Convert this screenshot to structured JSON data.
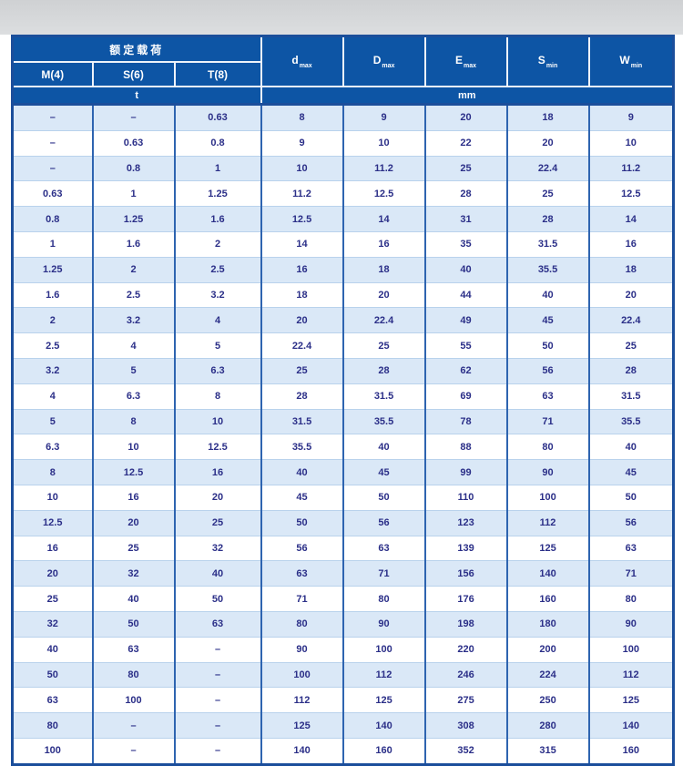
{
  "colors": {
    "header_bg": "#0d55a5",
    "header_text": "#ffffff",
    "row_alt_bg": "#dae8f7",
    "row_bg": "#ffffff",
    "data_text": "#2b2f88",
    "grid_vertical": "#2e64b0",
    "grid_horizontal": "#b9d2ec",
    "outer_border": "#1b4e9b",
    "top_strip": "#d4d6d8"
  },
  "table": {
    "group_header": "额定载荷",
    "sub_headers": [
      "M(4)",
      "S(6)",
      "T(8)"
    ],
    "dim_headers": [
      {
        "base": "d",
        "sub": "max"
      },
      {
        "base": "D",
        "sub": "max"
      },
      {
        "base": "E",
        "sub": "max"
      },
      {
        "base": "S",
        "sub": "min"
      },
      {
        "base": "W",
        "sub": "min"
      }
    ],
    "unit_left": "t",
    "unit_right": "mm",
    "rows": [
      [
        "–",
        "–",
        "0.63",
        "8",
        "9",
        "20",
        "18",
        "9"
      ],
      [
        "–",
        "0.63",
        "0.8",
        "9",
        "10",
        "22",
        "20",
        "10"
      ],
      [
        "–",
        "0.8",
        "1",
        "10",
        "11.2",
        "25",
        "22.4",
        "11.2"
      ],
      [
        "0.63",
        "1",
        "1.25",
        "11.2",
        "12.5",
        "28",
        "25",
        "12.5"
      ],
      [
        "0.8",
        "1.25",
        "1.6",
        "12.5",
        "14",
        "31",
        "28",
        "14"
      ],
      [
        "1",
        "1.6",
        "2",
        "14",
        "16",
        "35",
        "31.5",
        "16"
      ],
      [
        "1.25",
        "2",
        "2.5",
        "16",
        "18",
        "40",
        "35.5",
        "18"
      ],
      [
        "1.6",
        "2.5",
        "3.2",
        "18",
        "20",
        "44",
        "40",
        "20"
      ],
      [
        "2",
        "3.2",
        "4",
        "20",
        "22.4",
        "49",
        "45",
        "22.4"
      ],
      [
        "2.5",
        "4",
        "5",
        "22.4",
        "25",
        "55",
        "50",
        "25"
      ],
      [
        "3.2",
        "5",
        "6.3",
        "25",
        "28",
        "62",
        "56",
        "28"
      ],
      [
        "4",
        "6.3",
        "8",
        "28",
        "31.5",
        "69",
        "63",
        "31.5"
      ],
      [
        "5",
        "8",
        "10",
        "31.5",
        "35.5",
        "78",
        "71",
        "35.5"
      ],
      [
        "6.3",
        "10",
        "12.5",
        "35.5",
        "40",
        "88",
        "80",
        "40"
      ],
      [
        "8",
        "12.5",
        "16",
        "40",
        "45",
        "99",
        "90",
        "45"
      ],
      [
        "10",
        "16",
        "20",
        "45",
        "50",
        "110",
        "100",
        "50"
      ],
      [
        "12.5",
        "20",
        "25",
        "50",
        "56",
        "123",
        "112",
        "56"
      ],
      [
        "16",
        "25",
        "32",
        "56",
        "63",
        "139",
        "125",
        "63"
      ],
      [
        "20",
        "32",
        "40",
        "63",
        "71",
        "156",
        "140",
        "71"
      ],
      [
        "25",
        "40",
        "50",
        "71",
        "80",
        "176",
        "160",
        "80"
      ],
      [
        "32",
        "50",
        "63",
        "80",
        "90",
        "198",
        "180",
        "90"
      ],
      [
        "40",
        "63",
        "–",
        "90",
        "100",
        "220",
        "200",
        "100"
      ],
      [
        "50",
        "80",
        "–",
        "100",
        "112",
        "246",
        "224",
        "112"
      ],
      [
        "63",
        "100",
        "–",
        "112",
        "125",
        "275",
        "250",
        "125"
      ],
      [
        "80",
        "–",
        "–",
        "125",
        "140",
        "308",
        "280",
        "140"
      ],
      [
        "100",
        "–",
        "–",
        "140",
        "160",
        "352",
        "315",
        "160"
      ]
    ]
  }
}
